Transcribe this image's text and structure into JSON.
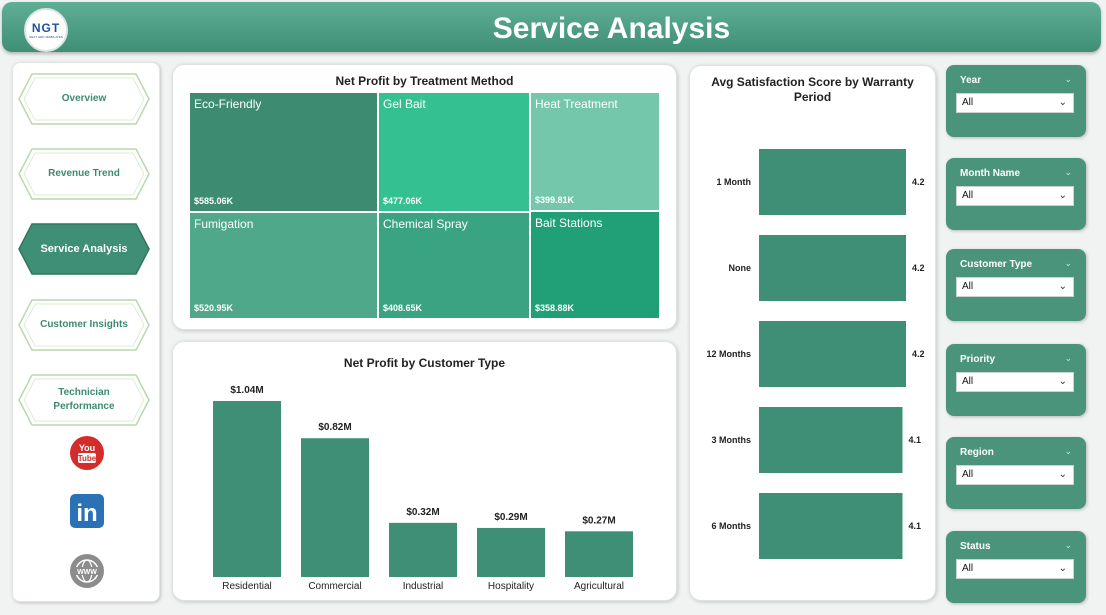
{
  "header": {
    "logo_text": "NGT",
    "logo_subtext": "NEXT GEN TEMPLATES",
    "title": "Service Analysis"
  },
  "nav": {
    "items": [
      {
        "label": "Overview",
        "active": false
      },
      {
        "label": "Revenue Trend",
        "active": false
      },
      {
        "label": "Service Analysis",
        "active": true
      },
      {
        "label": "Customer Insights",
        "active": false
      },
      {
        "label": "Technician Performance",
        "active": false
      }
    ],
    "social": [
      {
        "icon": "youtube-icon",
        "text": "You Tube"
      },
      {
        "icon": "linkedin-icon",
        "text": "in"
      },
      {
        "icon": "website-icon",
        "text": "WWW"
      }
    ]
  },
  "treemap": {
    "title": "Net Profit by Treatment Method",
    "tiles": [
      {
        "name": "Eco-Friendly",
        "value": "$585.06K",
        "color": "#3d8c71"
      },
      {
        "name": "Gel Bait",
        "value": "$477.06K",
        "color": "#34c091"
      },
      {
        "name": "Heat Treatment",
        "value": "$399.81K",
        "color": "#74c7ab"
      },
      {
        "name": "Fumigation",
        "value": "$520.95K",
        "color": "#4fa88a"
      },
      {
        "name": "Chemical Spray",
        "value": "$408.65K",
        "color": "#3aa482"
      },
      {
        "name": "Bait Stations",
        "value": "$358.88K",
        "color": "#21a077"
      }
    ]
  },
  "customer_chart": {
    "title": "Net Profit by Customer Type",
    "color": "#3f8f76"
  },
  "warranty_chart": {
    "title": "Avg Satisfaction Score by Warranty Period",
    "color": "#3f8f76"
  },
  "chart_data": [
    {
      "type": "bar",
      "title": "Net Profit by Customer Type",
      "categories": [
        "Residential",
        "Commercial",
        "Industrial",
        "Hospitality",
        "Agricultural"
      ],
      "values": [
        1.04,
        0.82,
        0.32,
        0.29,
        0.27
      ],
      "labels": [
        "$1.04M",
        "$0.82M",
        "$0.32M",
        "$0.29M",
        "$0.27M"
      ],
      "ylim": [
        0,
        1.04
      ],
      "unit": "$M"
    },
    {
      "type": "bar",
      "orientation": "horizontal",
      "title": "Avg Satisfaction Score by Warranty Period",
      "categories": [
        "1 Month",
        "None",
        "12 Months",
        "3 Months",
        "6 Months"
      ],
      "values": [
        4.2,
        4.2,
        4.2,
        4.1,
        4.1
      ],
      "labels": [
        "4.2",
        "4.2",
        "4.2",
        "4.1",
        "4.1"
      ]
    },
    {
      "type": "treemap",
      "title": "Net Profit by Treatment Method",
      "categories": [
        "Eco-Friendly",
        "Gel Bait",
        "Heat Treatment",
        "Fumigation",
        "Chemical Spray",
        "Bait Stations"
      ],
      "values": [
        585.06,
        477.06,
        399.81,
        520.95,
        408.65,
        358.88
      ],
      "unit": "$K"
    }
  ],
  "filters": [
    {
      "label": "Year",
      "value": "All"
    },
    {
      "label": "Month Name",
      "value": "All"
    },
    {
      "label": "Customer Type",
      "value": "All"
    },
    {
      "label": "Priority",
      "value": "All"
    },
    {
      "label": "Region",
      "value": "All"
    },
    {
      "label": "Status",
      "value": "All"
    }
  ]
}
